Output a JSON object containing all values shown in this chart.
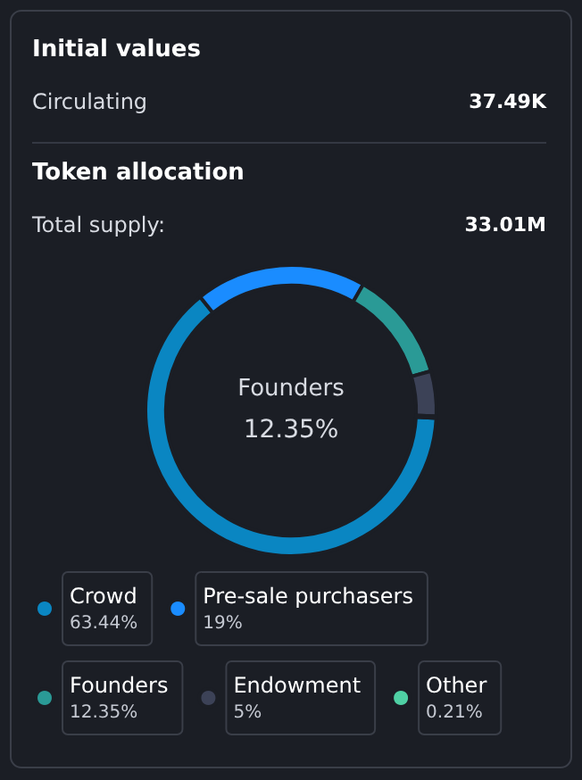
{
  "chart_data": {
    "type": "donut",
    "title": "Token allocation",
    "annotations": [
      "Initial values",
      "Circulating",
      "37.49K",
      "Total supply:",
      "33.01M",
      "Founders",
      "12.35%"
    ],
    "categories": [
      "Crowd",
      "Pre-sale purchasers",
      "Founders",
      "Endowment",
      "Other"
    ],
    "values": [
      63.44,
      19,
      12.35,
      5,
      0.21
    ],
    "colors": [
      "#0a86c2",
      "#1a8cff",
      "#2a9a96",
      "#3c4257",
      "#4fd0a4"
    ],
    "value_labels": [
      "63.44%",
      "19%",
      "12.35%",
      "5%",
      "0.21%"
    ],
    "legend": "bottom"
  }
}
